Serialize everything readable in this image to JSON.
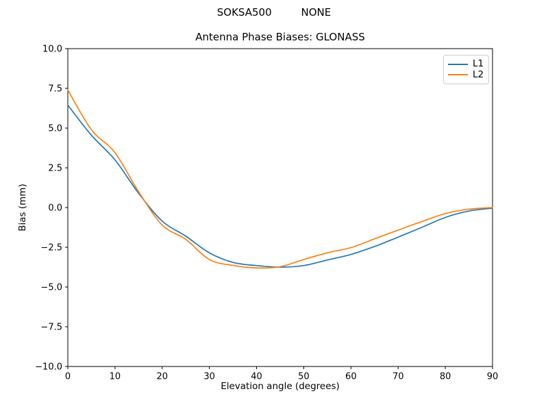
{
  "suptitle": "SOKSA500         NONE",
  "chart_data": {
    "type": "line",
    "title": "Antenna Phase Biases: GLONASS",
    "xlabel": "Elevation angle (degrees)",
    "ylabel": "Bias (mm)",
    "xlim": [
      0,
      90
    ],
    "ylim": [
      -10,
      10
    ],
    "xticks": [
      0,
      10,
      20,
      30,
      40,
      50,
      60,
      70,
      80,
      90
    ],
    "yticks": [
      -10,
      -7.5,
      -5,
      -2.5,
      0,
      2.5,
      5,
      7.5,
      10
    ],
    "grid": false,
    "legend_position": "upper right",
    "x": [
      0,
      5,
      10,
      15,
      20,
      25,
      30,
      35,
      40,
      45,
      50,
      55,
      60,
      65,
      70,
      75,
      80,
      85,
      90
    ],
    "series": [
      {
        "name": "L1",
        "color": "#1f77b4",
        "values": [
          6.45,
          4.55,
          3.0,
          0.9,
          -0.85,
          -1.8,
          -2.85,
          -3.45,
          -3.65,
          -3.75,
          -3.65,
          -3.3,
          -2.95,
          -2.45,
          -1.86,
          -1.25,
          -0.62,
          -0.22,
          -0.04
        ]
      },
      {
        "name": "L2",
        "color": "#ff7f0e",
        "values": [
          7.4,
          4.9,
          3.45,
          1.0,
          -1.1,
          -2.0,
          -3.27,
          -3.64,
          -3.8,
          -3.72,
          -3.27,
          -2.85,
          -2.52,
          -1.97,
          -1.42,
          -0.88,
          -0.38,
          -0.1,
          0.0
        ]
      }
    ]
  }
}
